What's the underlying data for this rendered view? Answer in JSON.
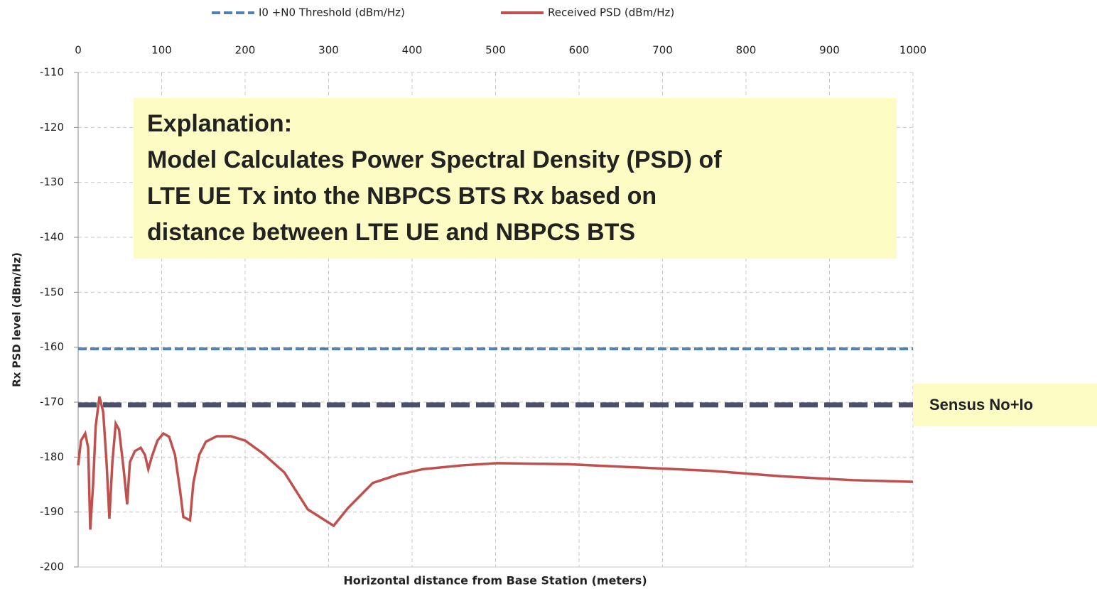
{
  "chart_data": {
    "type": "line",
    "xlabel": "Horizontal distance from Base Station (meters)",
    "ylabel": "Rx PSD level (dBm/Hz)",
    "xlim": [
      0,
      1000
    ],
    "xticks": [
      0,
      100,
      200,
      300,
      400,
      500,
      600,
      700,
      800,
      900,
      1000
    ],
    "ylim": [
      -200,
      -110
    ],
    "yticks": [
      -110,
      -120,
      -130,
      -140,
      -150,
      -160,
      -170,
      -180,
      -190,
      -200
    ],
    "grid": true,
    "legend": "top",
    "series": [
      {
        "name": "I0 +N0 Threshold (dBm/Hz)",
        "color": "#4f81bd",
        "dashed": true,
        "x": [
          0,
          1000
        ],
        "values": [
          -160.3,
          -160.3
        ]
      },
      {
        "name": "Received PSD (dBm/Hz)",
        "color": "#c0504d",
        "dashed": false,
        "x": [
          0,
          3.4,
          8.5,
          12,
          14.5,
          18,
          21,
          25.5,
          30,
          34,
          37.4,
          41,
          45,
          49,
          54.5,
          58.7,
          62,
          68,
          75,
          80,
          84,
          88.5,
          95,
          102,
          109,
          116,
          122,
          126,
          134,
          138,
          145,
          153,
          166,
          183,
          200,
          221,
          247,
          275,
          306,
          323,
          353,
          383,
          413,
          460,
          502,
          587,
          672,
          757,
          843,
          928,
          1000
        ],
        "values": [
          -181.5,
          -177,
          -175.7,
          -178.3,
          -193.2,
          -184.7,
          -174.4,
          -169,
          -171.8,
          -180.9,
          -191.2,
          -180.9,
          -173.9,
          -175,
          -182.2,
          -188.6,
          -180.9,
          -178.9,
          -178.3,
          -179.6,
          -182.2,
          -179.8,
          -177,
          -175.7,
          -176.3,
          -179.6,
          -186,
          -190.9,
          -191.5,
          -184.7,
          -179.6,
          -177.2,
          -176.2,
          -176.2,
          -177,
          -179.3,
          -182.8,
          -189.5,
          -192.5,
          -189.3,
          -184.7,
          -183.2,
          -182.2,
          -181.5,
          -181.1,
          -181.3,
          -181.9,
          -182.5,
          -183.5,
          -184.2,
          -184.5
        ]
      }
    ],
    "reference_line": {
      "label": "Sensus No+Io",
      "value": -170.5,
      "color": "#4a4f6a"
    },
    "annotation": {
      "lines": [
        "Explanation:",
        "Model Calculates Power Spectral Density (PSD)  of",
        "LTE UE Tx into the NBPCS BTS Rx based on",
        "distance between LTE UE and NBPCS BTS"
      ]
    }
  }
}
